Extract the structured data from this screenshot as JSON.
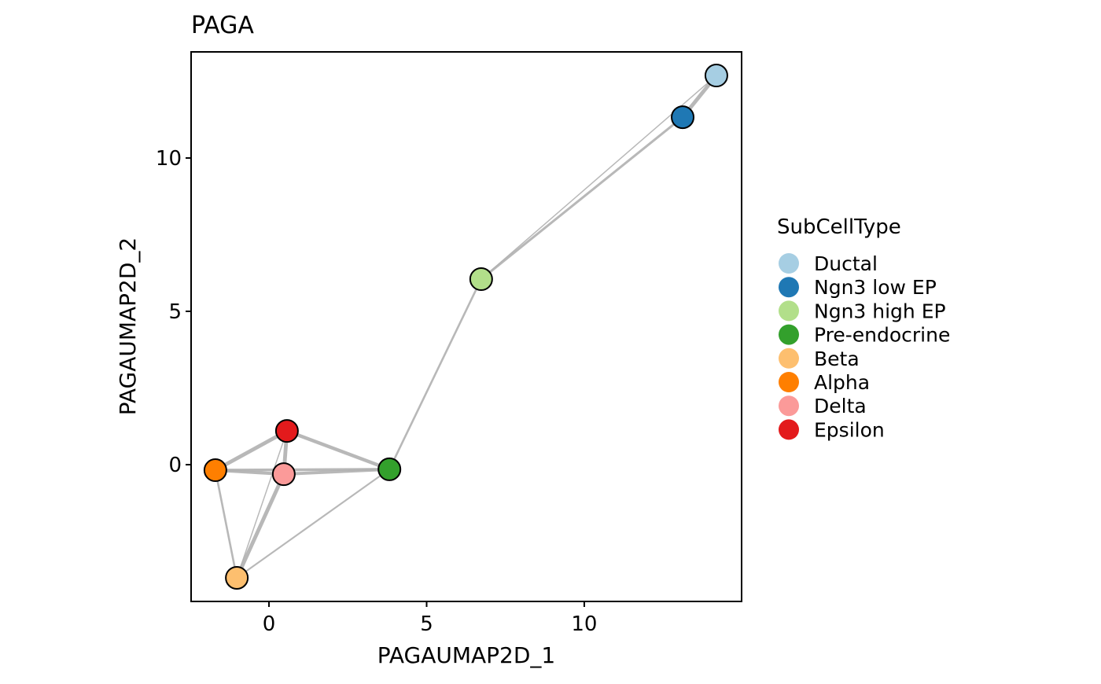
{
  "chart_data": {
    "type": "scatter",
    "title": "PAGA",
    "xlabel": "PAGAUMAP2D_1",
    "ylabel": "PAGAUMAP2D_2",
    "xlim": [
      -2.47,
      14.99
    ],
    "ylim": [
      -4.46,
      13.46
    ],
    "xticks": [
      0,
      5,
      10
    ],
    "yticks": [
      0,
      5,
      10
    ],
    "grid": false,
    "legend": {
      "title": "SubCellType",
      "placement": "right"
    },
    "nodes": [
      {
        "name": "Ductal",
        "x": 14.19,
        "y": 12.69,
        "color": "#A6CEE3"
      },
      {
        "name": "Ngn3 low EP",
        "x": 13.12,
        "y": 11.33,
        "color": "#1F78B4"
      },
      {
        "name": "Ngn3 high EP",
        "x": 6.73,
        "y": 6.05,
        "color": "#B2DF8A"
      },
      {
        "name": "Pre-endocrine",
        "x": 3.82,
        "y": -0.15,
        "color": "#33A02C"
      },
      {
        "name": "Beta",
        "x": -1.02,
        "y": -3.69,
        "color": "#FDBF6F"
      },
      {
        "name": "Alpha",
        "x": -1.7,
        "y": -0.18,
        "color": "#FF7F00"
      },
      {
        "name": "Delta",
        "x": 0.47,
        "y": -0.31,
        "color": "#FB9A99"
      },
      {
        "name": "Epsilon",
        "x": 0.57,
        "y": 1.1,
        "color": "#E31A1C"
      }
    ],
    "edges": [
      {
        "from": "Ductal",
        "to": "Ngn3 low EP",
        "weight": 0.9
      },
      {
        "from": "Ductal",
        "to": "Ngn3 high EP",
        "weight": 0.15
      },
      {
        "from": "Ngn3 low EP",
        "to": "Ngn3 high EP",
        "weight": 0.5
      },
      {
        "from": "Ngn3 high EP",
        "to": "Pre-endocrine",
        "weight": 0.4
      },
      {
        "from": "Pre-endocrine",
        "to": "Alpha",
        "weight": 0.6
      },
      {
        "from": "Pre-endocrine",
        "to": "Delta",
        "weight": 0.7
      },
      {
        "from": "Pre-endocrine",
        "to": "Epsilon",
        "weight": 0.8
      },
      {
        "from": "Pre-endocrine",
        "to": "Beta",
        "weight": 0.3
      },
      {
        "from": "Alpha",
        "to": "Epsilon",
        "weight": 0.9
      },
      {
        "from": "Alpha",
        "to": "Delta",
        "weight": 0.7
      },
      {
        "from": "Alpha",
        "to": "Beta",
        "weight": 0.4
      },
      {
        "from": "Beta",
        "to": "Epsilon",
        "weight": 0.15
      },
      {
        "from": "Beta",
        "to": "Delta",
        "weight": 0.9
      },
      {
        "from": "Delta",
        "to": "Epsilon",
        "weight": 0.9
      }
    ],
    "edge_color": "#B0B0B0"
  }
}
